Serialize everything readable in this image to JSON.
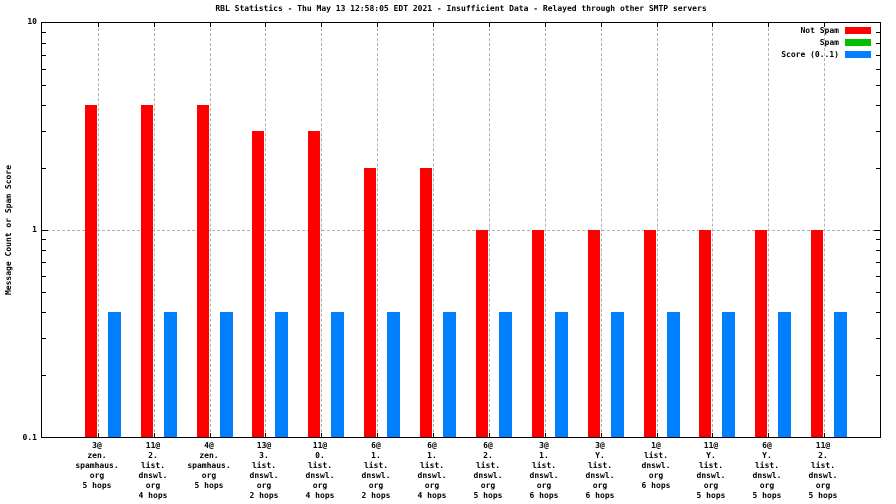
{
  "title": "RBL Statistics - Thu May 13 12:58:05 EDT 2021 - Insufficient Data - Relayed through other SMTP servers",
  "ylabel": "Message Count or Spam Score",
  "y_ticks": [
    "10",
    "1",
    "0.1"
  ],
  "legend": [
    {
      "label": "Not Spam",
      "color": "#ff0000"
    },
    {
      "label": "Spam",
      "color": "#00c000"
    },
    {
      "label": "Score (0..1)",
      "color": "#0080ff"
    }
  ],
  "colors": {
    "not_spam": "#ff0000",
    "spam": "#00c000",
    "score": "#0080ff",
    "grid": "#b0b0b0"
  },
  "chart_data": {
    "type": "bar",
    "title": "RBL Statistics - Thu May 13 12:58:05 EDT 2021 - Insufficient Data - Relayed through other SMTP servers",
    "xlabel": "",
    "ylabel": "Message Count or Spam Score",
    "yscale": "log",
    "ylim": [
      0.1,
      10
    ],
    "grid": true,
    "legend_position": "top-right",
    "categories": [
      [
        "3@",
        "zen.",
        "spamhaus.",
        "org",
        "5 hops"
      ],
      [
        "11@",
        "2.",
        "list.",
        "dnswl.",
        "org",
        "4 hops"
      ],
      [
        "4@",
        "zen.",
        "spamhaus.",
        "org",
        "5 hops"
      ],
      [
        "13@",
        "3.",
        "list.",
        "dnswl.",
        "org",
        "2 hops"
      ],
      [
        "11@",
        "0.",
        "list.",
        "dnswl.",
        "org",
        "4 hops"
      ],
      [
        "6@",
        "1.",
        "list.",
        "dnswl.",
        "org",
        "2 hops"
      ],
      [
        "6@",
        "1.",
        "list.",
        "dnswl.",
        "org",
        "4 hops"
      ],
      [
        "6@",
        "2.",
        "list.",
        "dnswl.",
        "org",
        "5 hops"
      ],
      [
        "3@",
        "1.",
        "list.",
        "dnswl.",
        "org",
        "6 hops"
      ],
      [
        "3@",
        "Y.",
        "list.",
        "dnswl.",
        "org",
        "6 hops"
      ],
      [
        "1@",
        "list.",
        "dnswl.",
        "org",
        "6 hops"
      ],
      [
        "11@",
        "Y.",
        "list.",
        "dnswl.",
        "org",
        "5 hops"
      ],
      [
        "6@",
        "Y.",
        "list.",
        "dnswl.",
        "org",
        "5 hops"
      ],
      [
        "11@",
        "2.",
        "list.",
        "dnswl.",
        "org",
        "5 hops"
      ]
    ],
    "series": [
      {
        "name": "Not Spam",
        "color": "#ff0000",
        "values": [
          4,
          4,
          4,
          3,
          3,
          2,
          2,
          1,
          1,
          1,
          1,
          1,
          1,
          1
        ]
      },
      {
        "name": "Spam",
        "color": "#00c000",
        "values": [
          0,
          0,
          0,
          0,
          0,
          0,
          0,
          0,
          0,
          0,
          0,
          0,
          0,
          0
        ]
      },
      {
        "name": "Score (0..1)",
        "color": "#0080ff",
        "values": [
          0.4,
          0.4,
          0.4,
          0.4,
          0.4,
          0.4,
          0.4,
          0.4,
          0.4,
          0.4,
          0.4,
          0.4,
          0.4,
          0.4
        ]
      }
    ],
    "y_major_ticks": [
      0.1,
      1,
      10
    ],
    "y_minor_ticks": [
      0.2,
      0.3,
      0.4,
      0.5,
      0.6,
      0.7,
      0.8,
      0.9,
      2,
      3,
      4,
      5,
      6,
      7,
      8,
      9
    ]
  }
}
